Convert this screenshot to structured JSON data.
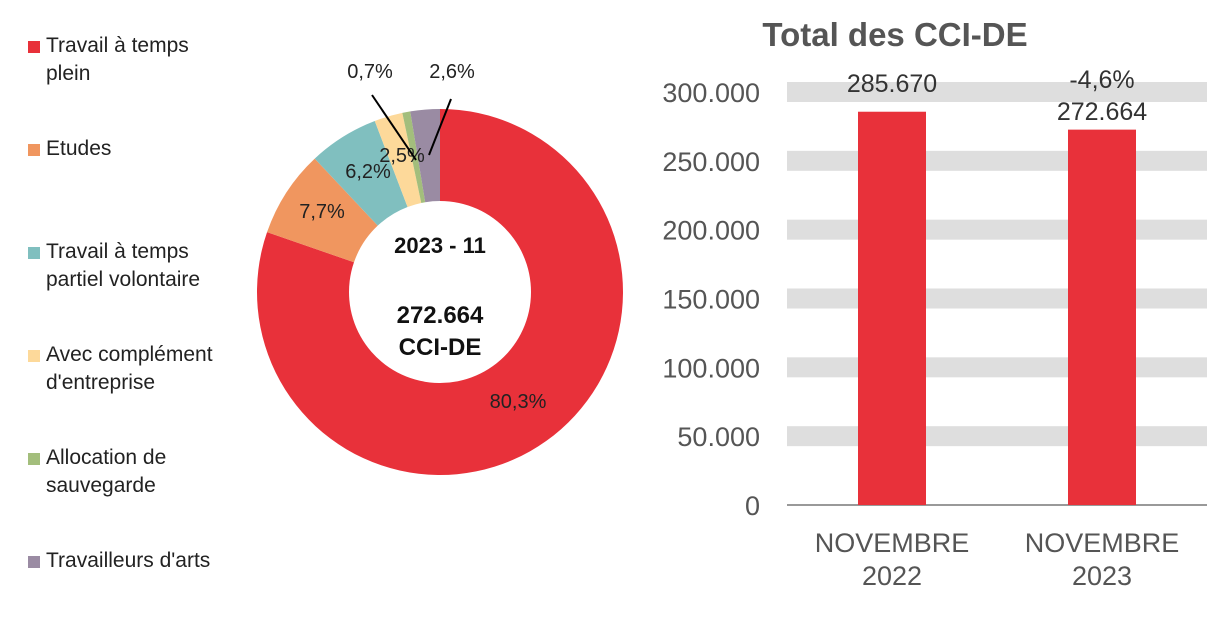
{
  "chart_data": [
    {
      "type": "pie",
      "style": "donut",
      "center_title": "2023 - 11",
      "center_value": "272.664",
      "center_unit": "CCI-DE",
      "legend_position": "left",
      "slices": [
        {
          "name": "Travail à temps plein",
          "value": 80.3,
          "label": "80,3%",
          "color": "#E8313A"
        },
        {
          "name": "Etudes",
          "value": 7.7,
          "label": "7,7%",
          "color": "#F0965F"
        },
        {
          "name": "Travail à temps partiel volontaire",
          "value": 6.2,
          "label": "6,2%",
          "color": "#80BFBF"
        },
        {
          "name": "Avec complément d'entreprise",
          "value": 2.5,
          "label": "2,5%",
          "color": "#FDD99A"
        },
        {
          "name": "Allocation de sauvegarde",
          "value": 0.7,
          "label": "0,7%",
          "color": "#A3BE7C"
        },
        {
          "name": "Travailleurs d'arts",
          "value": 2.6,
          "label": "2,6%",
          "color": "#9A8BA3"
        }
      ]
    },
    {
      "type": "bar",
      "title": "Total des CCI-DE",
      "categories": [
        "NOVEMBRE 2022",
        "NOVEMBRE 2023"
      ],
      "values": [
        285670,
        272664
      ],
      "data_labels": [
        "285.670",
        "272.664"
      ],
      "change_label": "-4,6%",
      "ylim": [
        0,
        300000
      ],
      "yticks": [
        0,
        50000,
        100000,
        150000,
        200000,
        250000,
        300000
      ],
      "ytick_labels": [
        "0",
        "50.000",
        "100.000",
        "150.000",
        "200.000",
        "250.000",
        "300.000"
      ],
      "grid": true,
      "bar_color": "#E8313A",
      "grid_color": "#DEDEDE"
    }
  ]
}
